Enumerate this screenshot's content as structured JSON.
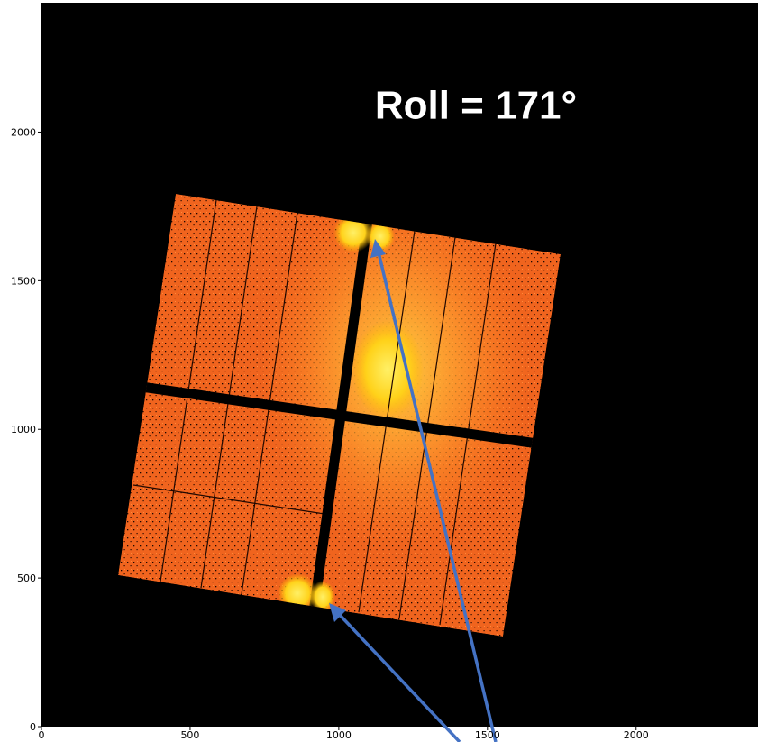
{
  "chart_data": {
    "type": "image",
    "annotation": "Roll = 171°",
    "xlim": [
      0,
      2410
    ],
    "ylim": [
      0,
      2435
    ],
    "xticks": [
      0,
      500,
      1000,
      1500,
      2000
    ],
    "yticks": [
      0,
      500,
      1000,
      1500,
      2000
    ]
  }
}
